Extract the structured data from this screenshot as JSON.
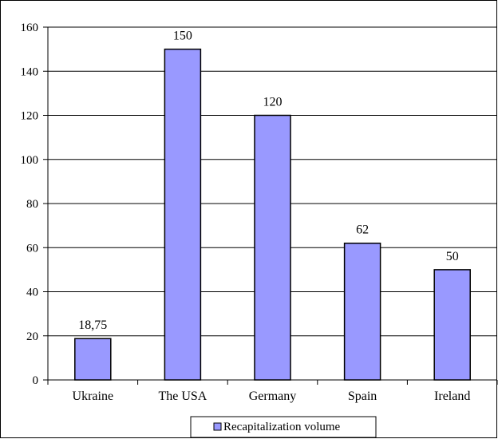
{
  "chart_data": {
    "type": "bar",
    "categories": [
      "Ukraine",
      "The USA",
      "Germany",
      "Spain",
      "Ireland"
    ],
    "series": [
      {
        "name": "Recapitalization volume",
        "values": [
          18.75,
          150,
          120,
          62,
          50
        ],
        "data_labels": [
          "18,75",
          "150",
          "120",
          "62",
          "50"
        ]
      }
    ],
    "yticks": [
      0,
      20,
      40,
      60,
      80,
      100,
      120,
      140,
      160
    ],
    "ylim": [
      0,
      160
    ],
    "grid": true,
    "legend_position": "bottom",
    "bar_color": "#9999ff",
    "bar_stroke": "#000000",
    "xlabel": "",
    "ylabel": ""
  }
}
